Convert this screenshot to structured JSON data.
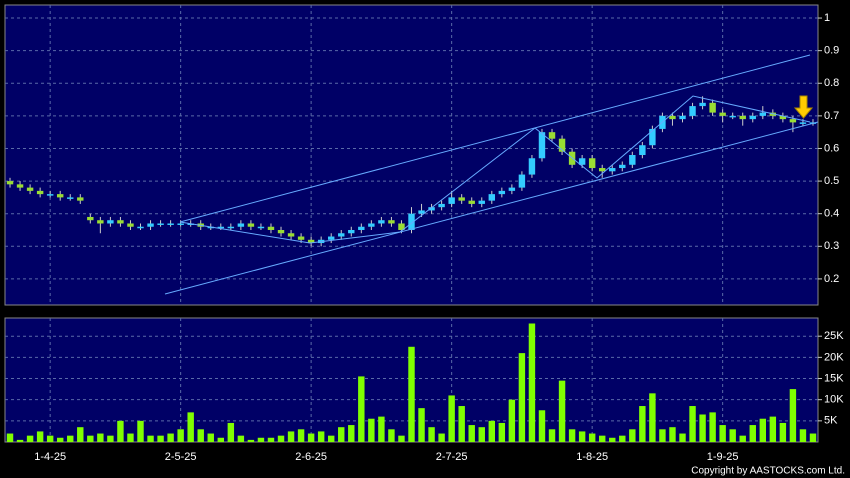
{
  "chart_data": [
    {
      "type": "candlestick",
      "categories": [
        null,
        null,
        null,
        null,
        "1-4-25",
        null,
        null,
        null,
        null,
        null,
        null,
        null,
        null,
        null,
        null,
        null,
        null,
        "2-5-25",
        null,
        null,
        null,
        null,
        null,
        null,
        null,
        null,
        null,
        null,
        null,
        null,
        "2-6-25",
        null,
        null,
        null,
        null,
        null,
        null,
        null,
        null,
        null,
        null,
        null,
        null,
        null,
        "2-7-25",
        null,
        null,
        null,
        null,
        null,
        null,
        null,
        null,
        null,
        null,
        null,
        null,
        null,
        "1-8-25",
        null,
        null,
        null,
        null,
        null,
        null,
        null,
        null,
        null,
        null,
        null,
        null,
        "1-9-25",
        null,
        null,
        null,
        null,
        null,
        null,
        null,
        null,
        null
      ],
      "open": [
        0.5,
        0.49,
        0.48,
        0.47,
        0.46,
        0.46,
        0.45,
        0.45,
        0.39,
        0.38,
        0.37,
        0.38,
        0.37,
        0.36,
        0.36,
        0.37,
        0.37,
        0.37,
        0.37,
        0.37,
        0.36,
        0.36,
        0.36,
        0.36,
        0.37,
        0.36,
        0.36,
        0.35,
        0.34,
        0.33,
        0.32,
        0.31,
        0.32,
        0.33,
        0.34,
        0.35,
        0.36,
        0.37,
        0.38,
        0.37,
        0.35,
        0.4,
        0.41,
        0.42,
        0.43,
        0.45,
        0.44,
        0.43,
        0.44,
        0.46,
        0.47,
        0.48,
        0.52,
        0.57,
        0.65,
        0.63,
        0.59,
        0.55,
        0.57,
        0.54,
        0.53,
        0.54,
        0.55,
        0.58,
        0.61,
        0.66,
        0.7,
        0.69,
        0.7,
        0.73,
        0.74,
        0.71,
        0.7,
        0.7,
        0.69,
        0.7,
        0.71,
        0.7,
        0.69,
        0.68,
        0.68
      ],
      "high": [
        0.51,
        0.5,
        0.49,
        0.48,
        0.47,
        0.47,
        0.46,
        0.46,
        0.4,
        0.39,
        0.39,
        0.39,
        0.38,
        0.37,
        0.38,
        0.38,
        0.38,
        0.38,
        0.38,
        0.38,
        0.37,
        0.37,
        0.37,
        0.38,
        0.38,
        0.37,
        0.37,
        0.36,
        0.35,
        0.34,
        0.33,
        0.33,
        0.34,
        0.35,
        0.36,
        0.37,
        0.38,
        0.39,
        0.39,
        0.38,
        0.42,
        0.43,
        0.43,
        0.44,
        0.47,
        0.46,
        0.45,
        0.45,
        0.47,
        0.48,
        0.49,
        0.53,
        0.58,
        0.66,
        0.66,
        0.64,
        0.6,
        0.58,
        0.58,
        0.55,
        0.55,
        0.56,
        0.59,
        0.62,
        0.67,
        0.71,
        0.71,
        0.71,
        0.74,
        0.76,
        0.75,
        0.72,
        0.71,
        0.71,
        0.71,
        0.73,
        0.72,
        0.71,
        0.7,
        0.69,
        0.69
      ],
      "low": [
        0.48,
        0.47,
        0.46,
        0.45,
        0.45,
        0.44,
        0.44,
        0.43,
        0.37,
        0.34,
        0.36,
        0.36,
        0.35,
        0.35,
        0.35,
        0.36,
        0.36,
        0.36,
        0.36,
        0.35,
        0.35,
        0.35,
        0.35,
        0.35,
        0.35,
        0.35,
        0.34,
        0.33,
        0.32,
        0.31,
        0.3,
        0.3,
        0.31,
        0.32,
        0.33,
        0.34,
        0.35,
        0.36,
        0.36,
        0.34,
        0.34,
        0.39,
        0.4,
        0.41,
        0.42,
        0.43,
        0.42,
        0.42,
        0.43,
        0.45,
        0.46,
        0.47,
        0.51,
        0.56,
        0.62,
        0.58,
        0.54,
        0.54,
        0.53,
        0.51,
        0.52,
        0.53,
        0.54,
        0.57,
        0.6,
        0.65,
        0.67,
        0.68,
        0.69,
        0.72,
        0.7,
        0.68,
        0.69,
        0.67,
        0.68,
        0.69,
        0.69,
        0.68,
        0.65,
        0.67,
        0.67
      ],
      "close": [
        0.49,
        0.48,
        0.47,
        0.46,
        0.46,
        0.45,
        0.45,
        0.44,
        0.38,
        0.37,
        0.38,
        0.37,
        0.36,
        0.36,
        0.37,
        0.37,
        0.37,
        0.37,
        0.37,
        0.36,
        0.36,
        0.36,
        0.36,
        0.37,
        0.36,
        0.36,
        0.35,
        0.34,
        0.33,
        0.32,
        0.31,
        0.32,
        0.33,
        0.34,
        0.35,
        0.36,
        0.37,
        0.38,
        0.37,
        0.35,
        0.4,
        0.41,
        0.42,
        0.43,
        0.45,
        0.44,
        0.43,
        0.44,
        0.46,
        0.47,
        0.48,
        0.52,
        0.57,
        0.65,
        0.63,
        0.59,
        0.55,
        0.57,
        0.54,
        0.53,
        0.54,
        0.55,
        0.58,
        0.61,
        0.66,
        0.7,
        0.69,
        0.7,
        0.73,
        0.74,
        0.71,
        0.7,
        0.7,
        0.69,
        0.7,
        0.71,
        0.7,
        0.69,
        0.68,
        0.68,
        0.68
      ],
      "up_color": "#33ccff",
      "down_color": "#99dd33",
      "ylim": [
        0.12,
        1.04
      ],
      "yticks": [
        0.2,
        0.3,
        0.4,
        0.5,
        0.6,
        0.7,
        0.8,
        0.9,
        1
      ],
      "grid": true
    },
    {
      "type": "bar",
      "values": [
        2000,
        500,
        1500,
        2500,
        1500,
        1000,
        1500,
        3500,
        1500,
        2000,
        1500,
        5000,
        2000,
        5000,
        1500,
        1500,
        2000,
        3000,
        7000,
        3000,
        2000,
        1000,
        4500,
        1500,
        500,
        1000,
        1000,
        1500,
        2500,
        3000,
        2000,
        2500,
        1500,
        3500,
        4000,
        15500,
        5500,
        6000,
        3000,
        1500,
        22500,
        8000,
        3500,
        2000,
        11000,
        8500,
        4000,
        3500,
        5000,
        4500,
        10000,
        21000,
        28000,
        7500,
        3000,
        14500,
        3000,
        2500,
        2000,
        1500,
        1000,
        1500,
        3000,
        8500,
        11500,
        3000,
        3500,
        2000,
        8500,
        6500,
        7000,
        4000,
        3000,
        1500,
        4000,
        5500,
        6000,
        4500,
        12500,
        3000,
        2000
      ],
      "color": "#80ff00",
      "ylim": [
        0,
        29300
      ],
      "yticks": [
        {
          "value": 5000,
          "label": "5K"
        },
        {
          "value": 10000,
          "label": "10K"
        },
        {
          "value": 15000,
          "label": "15K"
        },
        {
          "value": 20000,
          "label": "20K"
        },
        {
          "value": 25000,
          "label": "25K"
        }
      ],
      "grid": true
    }
  ],
  "copyright": "Copyright by AASTOCKS.com Ltd."
}
